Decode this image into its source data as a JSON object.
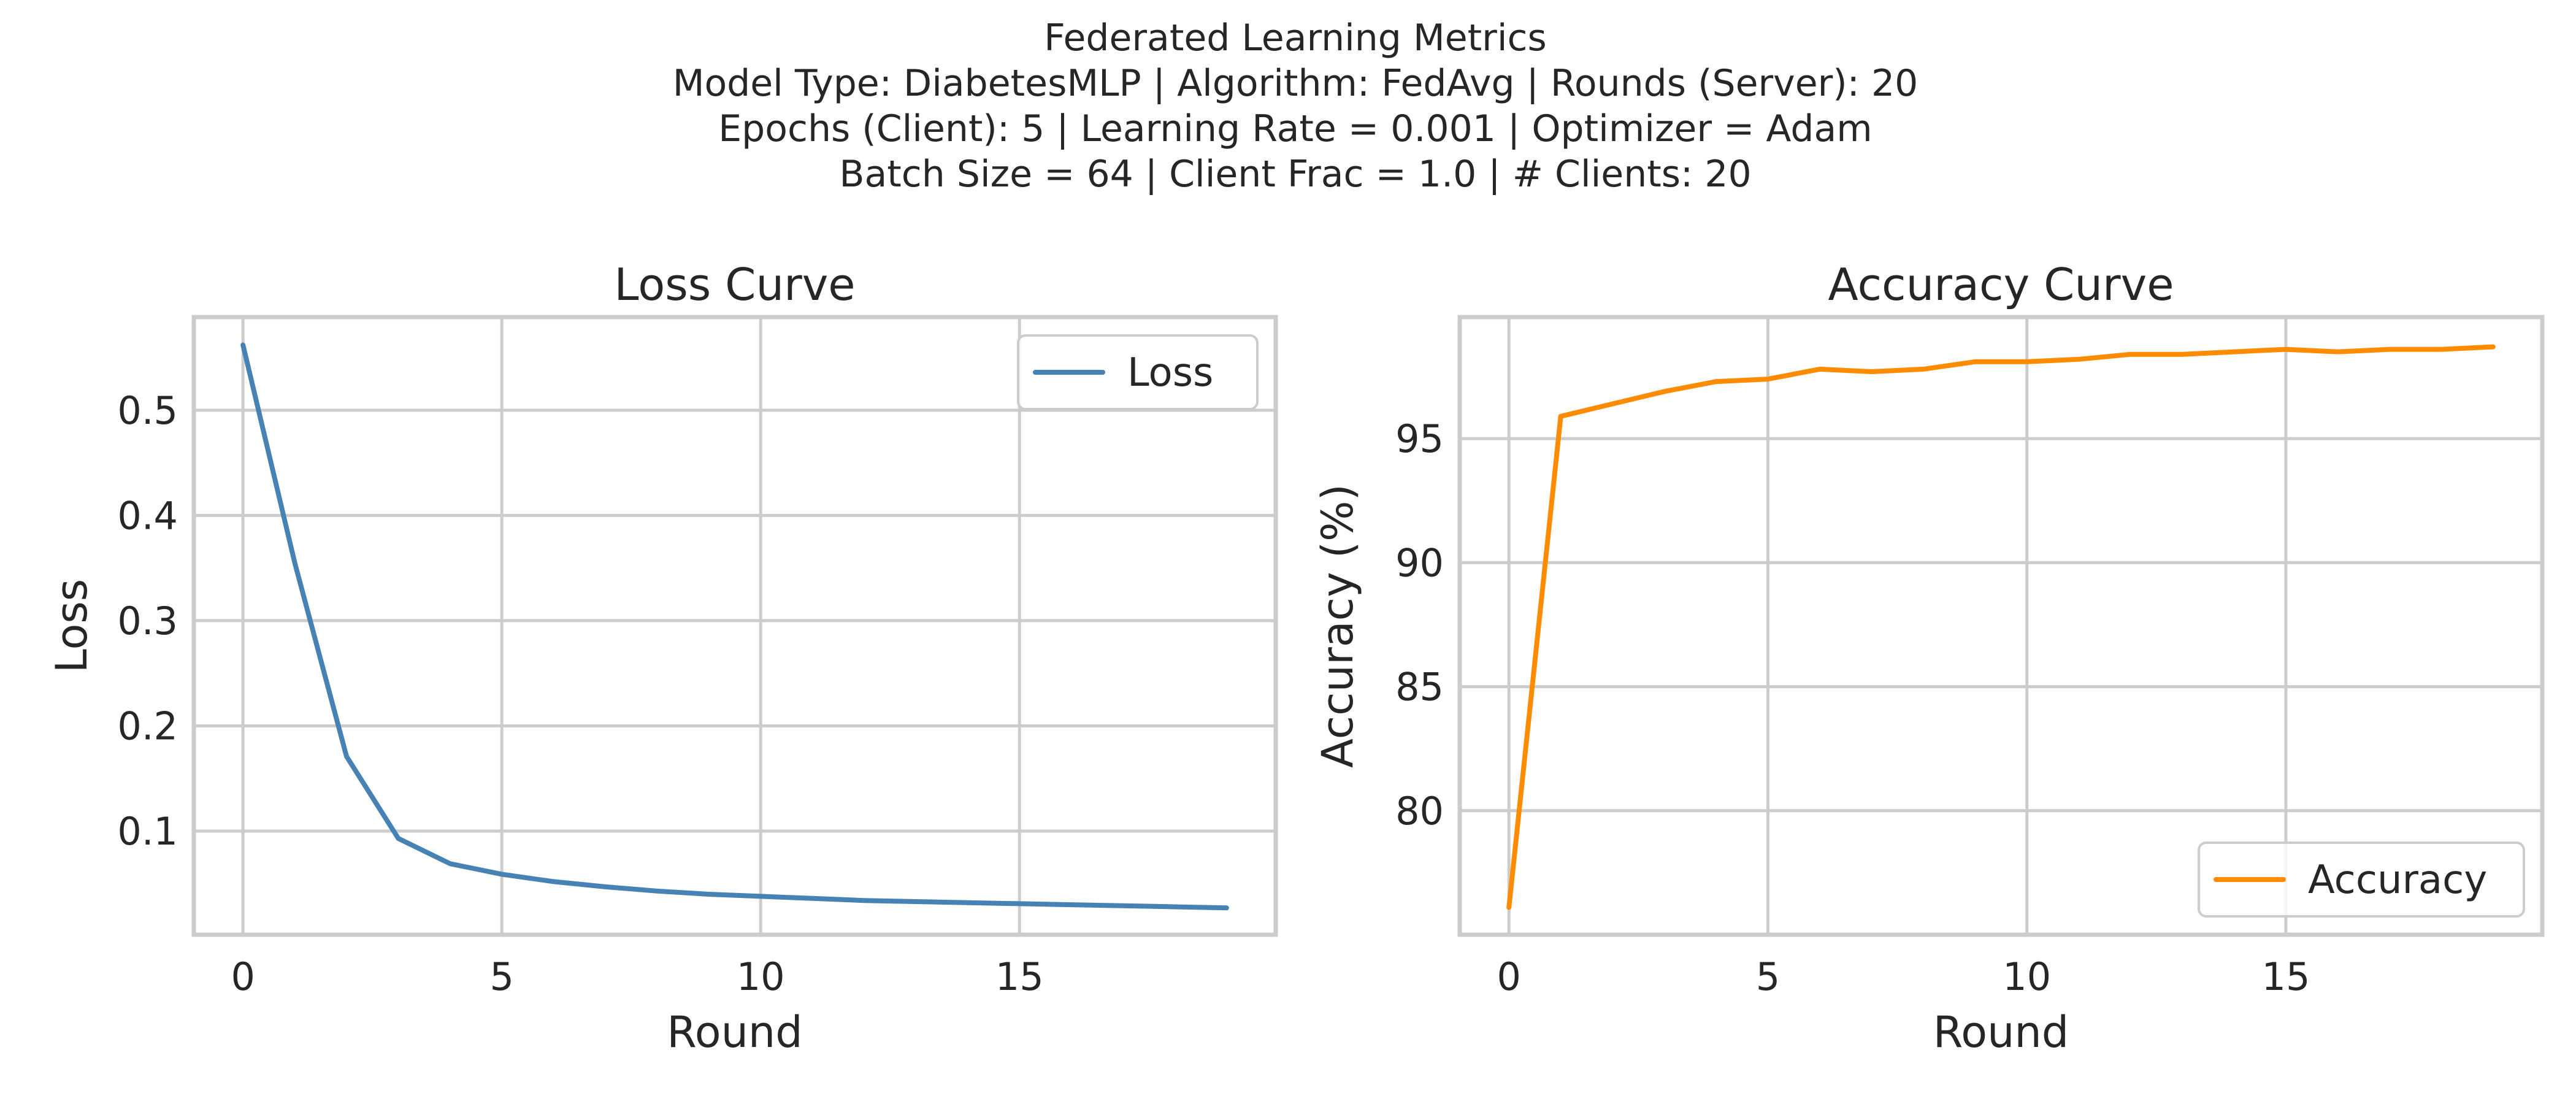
{
  "title_lines": [
    "Federated Learning Metrics",
    "Model Type: DiabetesMLP | Algorithm: FedAvg | Rounds (Server): 20",
    "Epochs (Client): 5 | Learning Rate = 0.001 | Optimizer = Adam",
    "Batch Size = 64 | Client Frac = 1.0 | # Clients: 20"
  ],
  "chart_data": [
    {
      "type": "line",
      "title": "Loss Curve",
      "xlabel": "Round",
      "ylabel": "Loss",
      "xlim": [
        -0.95,
        19.95
      ],
      "ylim": [
        0.0015,
        0.5885
      ],
      "xticks": [
        "0",
        "5",
        "10",
        "15"
      ],
      "yticks": [
        "0.1",
        "0.2",
        "0.3",
        "0.4",
        "0.5"
      ],
      "grid": true,
      "legend_position": "upper right",
      "series": [
        {
          "name": "Loss",
          "color": "#4682b4",
          "x": [
            0,
            1,
            2,
            3,
            4,
            5,
            6,
            7,
            8,
            9,
            10,
            11,
            12,
            13,
            14,
            15,
            16,
            17,
            18,
            19
          ],
          "values": [
            0.562,
            0.355,
            0.171,
            0.093,
            0.069,
            0.059,
            0.052,
            0.047,
            0.043,
            0.04,
            0.038,
            0.036,
            0.034,
            0.033,
            0.032,
            0.031,
            0.03,
            0.029,
            0.028,
            0.027
          ]
        }
      ]
    },
    {
      "type": "line",
      "title": "Accuracy Curve",
      "xlabel": "Round",
      "ylabel": "Accuracy (%)",
      "xlim": [
        -0.95,
        19.95
      ],
      "ylim": [
        75.0,
        99.9
      ],
      "xticks": [
        "0",
        "5",
        "10",
        "15"
      ],
      "yticks": [
        "80",
        "85",
        "90",
        "95"
      ],
      "grid": true,
      "legend_position": "lower right",
      "series": [
        {
          "name": "Accuracy",
          "color": "#ff8c00",
          "x": [
            0,
            1,
            2,
            3,
            4,
            5,
            6,
            7,
            8,
            9,
            10,
            11,
            12,
            13,
            14,
            15,
            16,
            17,
            18,
            19
          ],
          "values": [
            76.1,
            95.9,
            96.4,
            96.9,
            97.3,
            97.4,
            97.8,
            97.7,
            97.8,
            98.1,
            98.1,
            98.2,
            98.4,
            98.4,
            98.5,
            98.6,
            98.5,
            98.6,
            98.6,
            98.7
          ]
        }
      ]
    }
  ]
}
